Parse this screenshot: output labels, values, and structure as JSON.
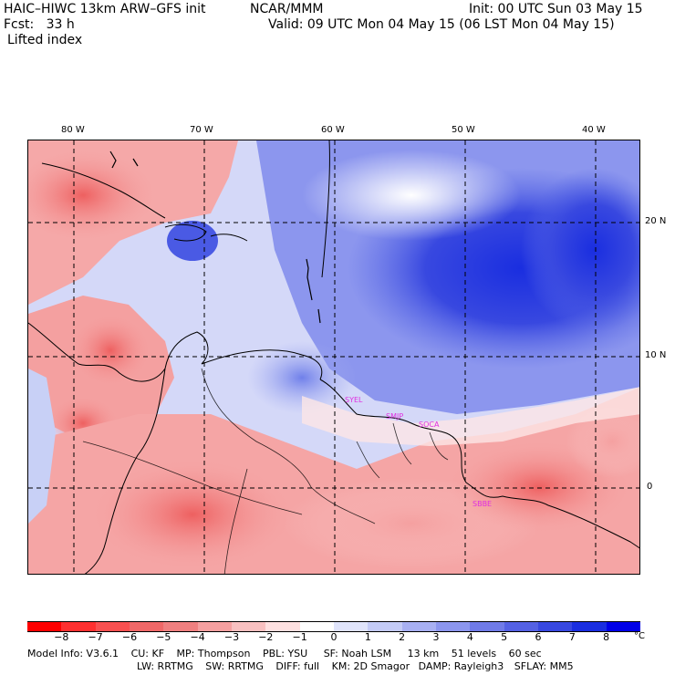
{
  "header": {
    "title": "HAIC–HIWC 13km ARW–GFS init",
    "center": "NCAR/MMM",
    "init": "Init: 00 UTC Sun 03 May 15",
    "fcst": "Fcst:   33 h",
    "valid": "Valid: 09 UTC Mon 04 May 15 (06 LST Mon 04 May 15)",
    "field": "Lifted index"
  },
  "map": {
    "lon_labels": [
      "80 W",
      "70 W",
      "60 W",
      "50 W",
      "40 W"
    ],
    "lat_labels": [
      "20 N",
      "10 N",
      "0"
    ],
    "stations": [
      "SYEL",
      "SMJP",
      "SOCA",
      "SBBE"
    ],
    "station_color": "#e030e0"
  },
  "colorbar": {
    "ticks": [
      "−8",
      "−7",
      "−6",
      "−5",
      "−4",
      "−3",
      "−2",
      "−1",
      "0",
      "1",
      "2",
      "3",
      "4",
      "5",
      "6",
      "7",
      "8"
    ],
    "unit": "°C",
    "colors": [
      "#ff0000",
      "#ff3030",
      "#f85050",
      "#f06868",
      "#f08080",
      "#f5a0a0",
      "#f8c0c0",
      "#fde0e0",
      "#ffffff",
      "#e0e4fb",
      "#c4cbf6",
      "#a8b0f2",
      "#8c96ee",
      "#707be8",
      "#5461e4",
      "#3848e0",
      "#1a2ee0",
      "#0000e8"
    ]
  },
  "model_info": {
    "line1": [
      "Model Info: V3.6.1",
      "CU: KF",
      "MP: Thompson",
      "PBL: YSU",
      "SF: Noah LSM",
      "13 km",
      "51 levels",
      "60 sec"
    ],
    "line2": [
      "LW: RRTMG",
      "SW: RRTMG",
      "DIFF: full",
      "KM: 2D Smagor",
      "DAMP: Rayleigh3",
      "SFLAY: MM5"
    ]
  }
}
